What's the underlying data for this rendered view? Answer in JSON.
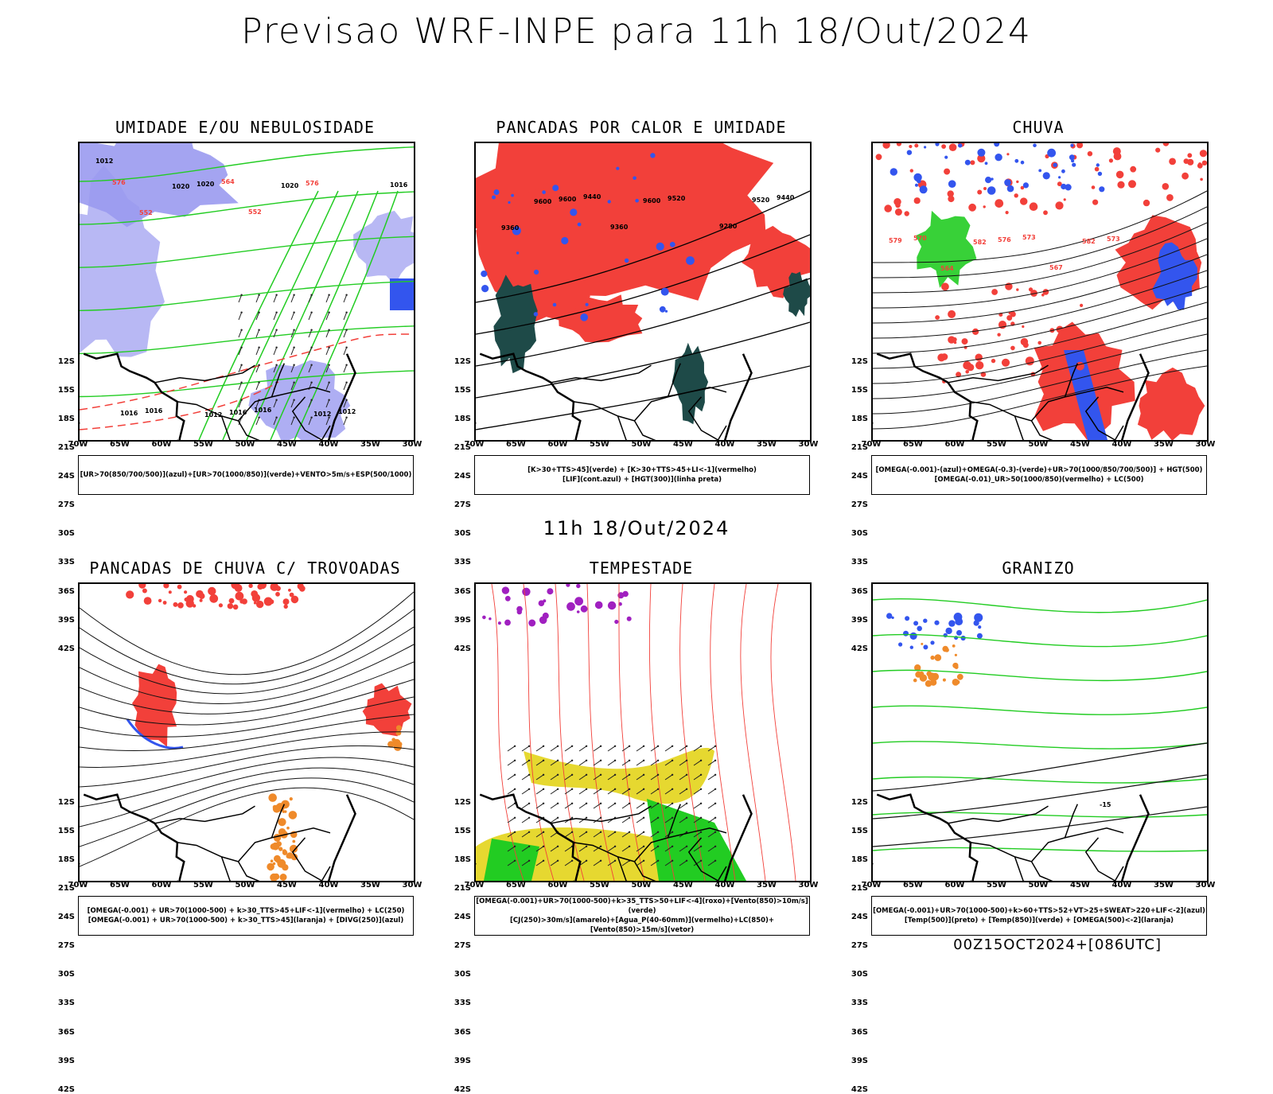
{
  "title": "Previsao WRF-INPE  para 11h 18/Out/2024",
  "middle_date": "11h 18/Out/2024",
  "footer_code": "00Z15OCT2024+[086UTC]",
  "lat_labels": [
    "12S",
    "15S",
    "18S",
    "21S",
    "24S",
    "27S",
    "30S",
    "33S",
    "36S",
    "39S",
    "42S"
  ],
  "lon_labels": [
    "70W",
    "65W",
    "60W",
    "55W",
    "50W",
    "45W",
    "40W",
    "35W",
    "30W"
  ],
  "colors": {
    "red": "#f2403a",
    "green": "#22cc22",
    "blue": "#3355ee",
    "lavender": "#9a9af0",
    "teal": "#1e4a48",
    "yellow": "#e6d830",
    "purple": "#a020c0",
    "orange": "#ef8a2a"
  },
  "panels": [
    {
      "id": "umidade",
      "title": "UMIDADE E/OU NEBULOSIDADE",
      "legend": [
        "[UR>70(850/700/500)](azul)+[UR>70(1000/850)](verde)+VENTO>5m/s+ESP(500/1000)"
      ],
      "contour_labels": [
        "1012",
        "1012",
        "1012",
        "1016",
        "1016",
        "1012",
        "1016",
        "1016",
        "1020",
        "1020",
        "1016",
        "1020",
        "576",
        "576",
        "564",
        "552",
        "552"
      ]
    },
    {
      "id": "pancadas-calor",
      "title": "PANCADAS POR CALOR E UMIDADE",
      "legend": [
        "[K>30+TTS>45](verde) + [K>30+TTS>45+LI<-1](vermelho)",
        "[LIF](cont.azul) + [HGT(300)](linha preta)"
      ],
      "contour_labels": [
        "9600",
        "9600",
        "9520",
        "9600",
        "9520",
        "9440",
        "9440",
        "9360",
        "9360",
        "9280"
      ]
    },
    {
      "id": "chuva",
      "title": "CHUVA",
      "legend": [
        "[OMEGA(-0.001)-(azul)+OMEGA(-0.3)-(verde)+UR>70(1000/850/700/500)] + HGT(500)",
        "[OMEGA(-0.01)_UR>50(1000/850)(vermelho) + LC(500)"
      ],
      "contour_labels": [
        "582",
        "582",
        "579",
        "576",
        "573",
        "570",
        "573",
        "564",
        "567"
      ]
    },
    {
      "id": "trovoadas",
      "title": "PANCADAS DE CHUVA C/ TROVOADAS",
      "legend": [
        "[OMEGA(-0.001) + UR>70(1000-500) + k>30_TTS>45+LIF<-1](vermelho) + LC(250)",
        "[OMEGA(-0.001) + UR>70(1000-500) + k>30_TTS>45](laranja) + [DIVG(250)](azul)"
      ],
      "contour_labels": []
    },
    {
      "id": "tempestade",
      "title": "TEMPESTADE",
      "legend": [
        "[OMEGA(-0.001)+UR>70(1000-500)+k>35_TTS>50+LIF<-4](roxo)+[Vento(850)>10m/s](verde)",
        "[CJ(250)>30m/s](amarelo)+[Agua_P(40-60mm)](vermelho)+LC(850)+[Vento(850)>15m/s](vetor)"
      ],
      "contour_labels": []
    },
    {
      "id": "granizo",
      "title": "GRANIZO",
      "legend": [
        "[OMEGA(-0.001)+UR>70(1000-500)+k>60+TTS>52+VT>25+SWEAT>220+LIF<-2](azul)",
        "[Temp(500)](preto) + [Temp(850)](verde) + [OMEGA(500)<-2](laranja)"
      ],
      "contour_labels": [
        "-15"
      ]
    }
  ]
}
